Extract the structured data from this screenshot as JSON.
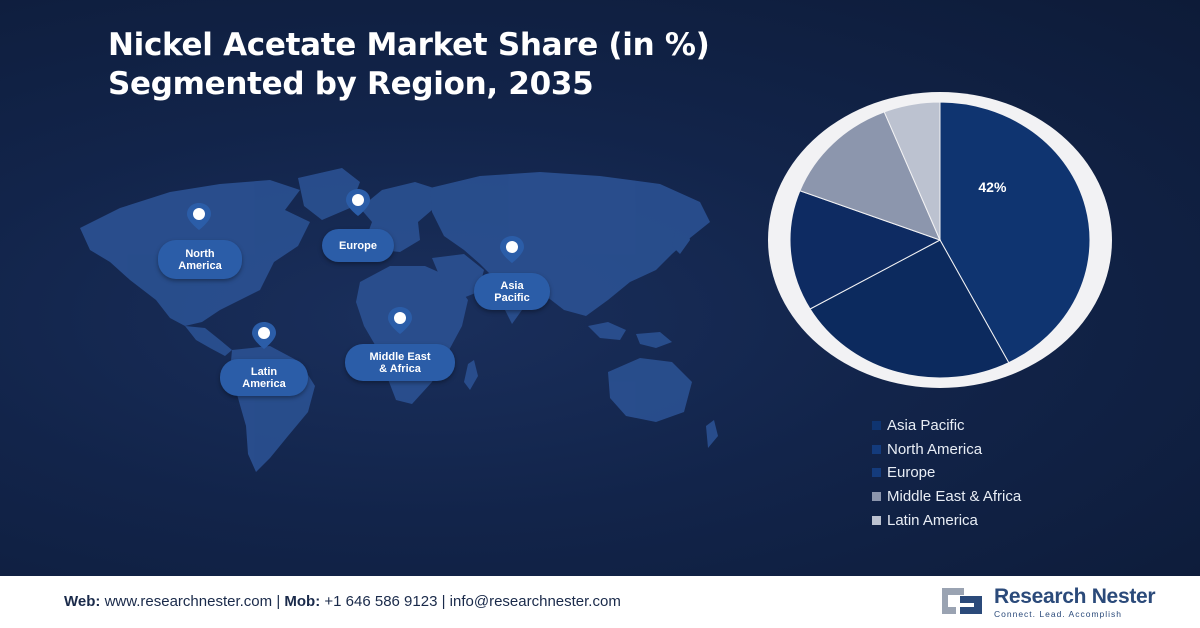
{
  "header": {
    "title_line1": "Nickel Acetate Market Share (in %)",
    "title_line2": "Segmented by Region, 2035"
  },
  "map": {
    "regions": [
      {
        "label": "North\nAmerica"
      },
      {
        "label": "Europe"
      },
      {
        "label": "Asia\nPacific"
      },
      {
        "label": "Latin\nAmerica"
      },
      {
        "label": "Middle East\n& Africa"
      }
    ],
    "colors": {
      "land": "#2a4f8f",
      "pin": "#2b5da8"
    }
  },
  "chart_data": {
    "type": "pie",
    "title": "Nickel Acetate Market Share (in %) Segmented by Region, 2035",
    "series": [
      {
        "name": "Asia Pacific",
        "value": 42,
        "color": "#0f3470",
        "label": "42%"
      },
      {
        "name": "North America",
        "value": 24,
        "color": "#0c2a5e",
        "label": ""
      },
      {
        "name": "Europe",
        "value": 14,
        "color": "#0e2b62",
        "label": ""
      },
      {
        "name": "Middle East & Africa",
        "value": 13,
        "color": "#8c96ad",
        "label": ""
      },
      {
        "name": "Latin America",
        "value": 6,
        "color": "#bcc2d0",
        "label": ""
      }
    ],
    "legend_position": "bottom-right",
    "ring_color": "#f2f2f4"
  },
  "footer": {
    "web_label": "Web:",
    "web_value": "www.researchnester.com",
    "mob_label": "Mob:",
    "mob_value": "+1 646 586 9123",
    "email": "info@researchnester.com",
    "sep": "|",
    "logo_name": "Research Nester",
    "logo_tagline": "Connect. Lead. Accomplish"
  }
}
